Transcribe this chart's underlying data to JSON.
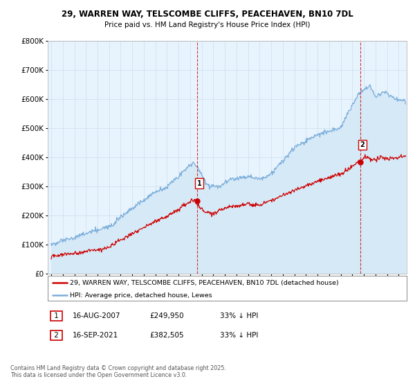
{
  "title": "29, WARREN WAY, TELSCOMBE CLIFFS, PEACEHAVEN, BN10 7DL",
  "subtitle": "Price paid vs. HM Land Registry's House Price Index (HPI)",
  "legend_line1": "29, WARREN WAY, TELSCOMBE CLIFFS, PEACEHAVEN, BN10 7DL (detached house)",
  "legend_line2": "HPI: Average price, detached house, Lewes",
  "footnote": "Contains HM Land Registry data © Crown copyright and database right 2025.\nThis data is licensed under the Open Government Licence v3.0.",
  "ann1_label": "1",
  "ann1_date": "16-AUG-2007",
  "ann1_price": "£249,950",
  "ann1_note": "33% ↓ HPI",
  "ann2_label": "2",
  "ann2_date": "16-SEP-2021",
  "ann2_price": "£382,505",
  "ann2_note": "33% ↓ HPI",
  "sale_color": "#cc0000",
  "hpi_color": "#7aaddb",
  "hpi_fill": "#d6e9f7",
  "ylim": [
    0,
    800000
  ],
  "yticks": [
    0,
    100000,
    200000,
    300000,
    400000,
    500000,
    600000,
    700000,
    800000
  ],
  "xlim_start": 1994.7,
  "xlim_end": 2025.7,
  "sale1_x": 2007.62,
  "sale1_y": 249950,
  "sale2_x": 2021.71,
  "sale2_y": 382505,
  "background_color": "#ffffff",
  "grid_color": "#ccddee"
}
